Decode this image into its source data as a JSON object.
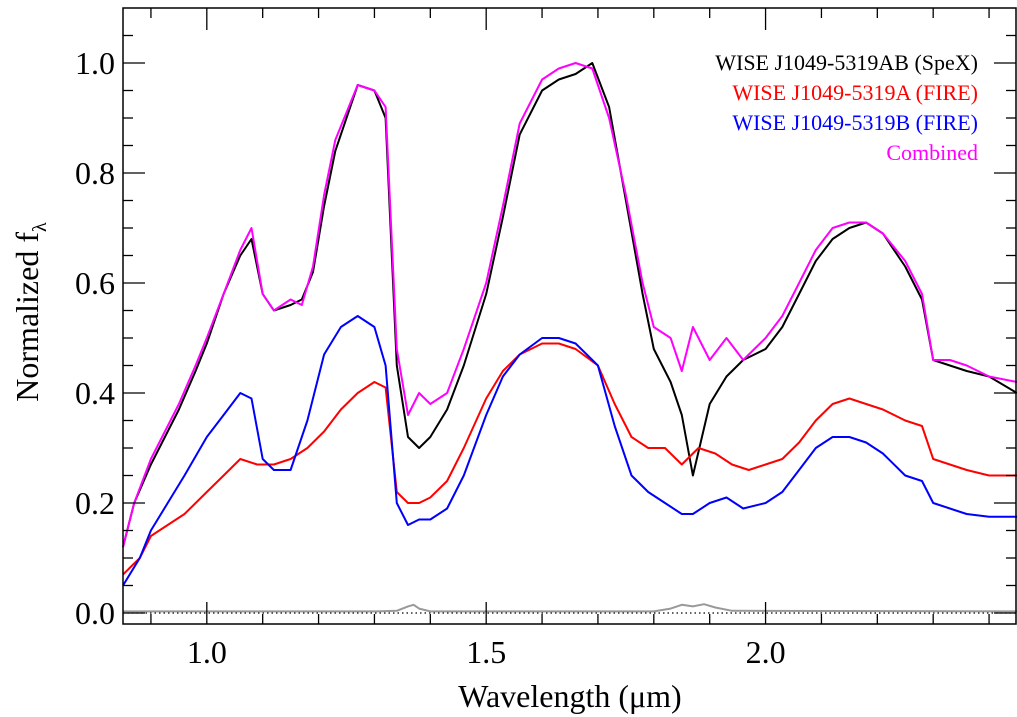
{
  "chart_data": {
    "type": "line",
    "title": "",
    "xlabel": "Wavelength (μm)",
    "ylabel": "Normalized f",
    "ylabel_sub": "λ",
    "xlim": [
      0.85,
      2.45
    ],
    "ylim": [
      -0.02,
      1.1
    ],
    "xticks": [
      1.0,
      1.5,
      2.0
    ],
    "xtick_labels": [
      "1.0",
      "1.5",
      "2.0"
    ],
    "yticks": [
      0.0,
      0.2,
      0.4,
      0.6,
      0.8,
      1.0
    ],
    "ytick_labels": [
      "0.0",
      "0.2",
      "0.4",
      "0.6",
      "0.8",
      "1.0"
    ],
    "grid": false,
    "legend_position": "top-right",
    "series": [
      {
        "name": "WISE J1049-5319AB (SpeX)",
        "color": "#000000",
        "x": [
          0.85,
          0.87,
          0.9,
          0.92,
          0.95,
          0.98,
          1.0,
          1.03,
          1.06,
          1.08,
          1.1,
          1.12,
          1.15,
          1.17,
          1.19,
          1.21,
          1.23,
          1.25,
          1.27,
          1.3,
          1.32,
          1.34,
          1.36,
          1.38,
          1.4,
          1.43,
          1.46,
          1.5,
          1.53,
          1.56,
          1.6,
          1.63,
          1.66,
          1.69,
          1.72,
          1.75,
          1.78,
          1.8,
          1.83,
          1.85,
          1.87,
          1.9,
          1.93,
          1.96,
          2.0,
          2.03,
          2.06,
          2.09,
          2.12,
          2.15,
          2.18,
          2.21,
          2.25,
          2.28,
          2.3,
          2.33,
          2.36,
          2.4,
          2.45
        ],
        "y": [
          0.12,
          0.2,
          0.27,
          0.31,
          0.37,
          0.44,
          0.49,
          0.58,
          0.65,
          0.68,
          0.58,
          0.55,
          0.56,
          0.57,
          0.62,
          0.74,
          0.84,
          0.9,
          0.96,
          0.95,
          0.9,
          0.45,
          0.32,
          0.3,
          0.32,
          0.37,
          0.45,
          0.58,
          0.72,
          0.87,
          0.95,
          0.97,
          0.98,
          1.0,
          0.92,
          0.75,
          0.58,
          0.48,
          0.42,
          0.36,
          0.25,
          0.38,
          0.43,
          0.46,
          0.48,
          0.52,
          0.58,
          0.64,
          0.68,
          0.7,
          0.71,
          0.69,
          0.63,
          0.57,
          0.46,
          0.45,
          0.44,
          0.43,
          0.4
        ]
      },
      {
        "name": "WISE J1049-5319A (FIRE)",
        "color": "#ff0000",
        "x": [
          0.85,
          0.88,
          0.9,
          0.93,
          0.96,
          1.0,
          1.03,
          1.06,
          1.09,
          1.12,
          1.15,
          1.18,
          1.21,
          1.24,
          1.27,
          1.3,
          1.32,
          1.34,
          1.36,
          1.38,
          1.4,
          1.43,
          1.46,
          1.5,
          1.53,
          1.56,
          1.6,
          1.63,
          1.66,
          1.7,
          1.73,
          1.76,
          1.79,
          1.82,
          1.85,
          1.88,
          1.91,
          1.94,
          1.97,
          2.0,
          2.03,
          2.06,
          2.09,
          2.12,
          2.15,
          2.18,
          2.21,
          2.25,
          2.28,
          2.3,
          2.33,
          2.36,
          2.4,
          2.45
        ],
        "y": [
          0.07,
          0.1,
          0.14,
          0.16,
          0.18,
          0.22,
          0.25,
          0.28,
          0.27,
          0.27,
          0.28,
          0.3,
          0.33,
          0.37,
          0.4,
          0.42,
          0.41,
          0.22,
          0.2,
          0.2,
          0.21,
          0.24,
          0.3,
          0.39,
          0.44,
          0.47,
          0.49,
          0.49,
          0.48,
          0.45,
          0.38,
          0.32,
          0.3,
          0.3,
          0.27,
          0.3,
          0.29,
          0.27,
          0.26,
          0.27,
          0.28,
          0.31,
          0.35,
          0.38,
          0.39,
          0.38,
          0.37,
          0.35,
          0.34,
          0.28,
          0.27,
          0.26,
          0.25,
          0.25
        ]
      },
      {
        "name": "WISE J1049-5319B (FIRE)",
        "color": "#0000ff",
        "x": [
          0.85,
          0.88,
          0.9,
          0.93,
          0.96,
          1.0,
          1.03,
          1.06,
          1.08,
          1.1,
          1.12,
          1.15,
          1.18,
          1.21,
          1.24,
          1.27,
          1.3,
          1.32,
          1.34,
          1.36,
          1.38,
          1.4,
          1.43,
          1.46,
          1.5,
          1.53,
          1.56,
          1.6,
          1.63,
          1.66,
          1.7,
          1.73,
          1.76,
          1.79,
          1.82,
          1.85,
          1.87,
          1.9,
          1.93,
          1.96,
          2.0,
          2.03,
          2.06,
          2.09,
          2.12,
          2.15,
          2.18,
          2.21,
          2.25,
          2.28,
          2.3,
          2.33,
          2.36,
          2.4,
          2.45
        ],
        "y": [
          0.05,
          0.1,
          0.15,
          0.2,
          0.25,
          0.32,
          0.36,
          0.4,
          0.39,
          0.28,
          0.26,
          0.26,
          0.35,
          0.47,
          0.52,
          0.54,
          0.52,
          0.45,
          0.2,
          0.16,
          0.17,
          0.17,
          0.19,
          0.25,
          0.36,
          0.43,
          0.47,
          0.5,
          0.5,
          0.49,
          0.45,
          0.34,
          0.25,
          0.22,
          0.2,
          0.18,
          0.18,
          0.2,
          0.21,
          0.19,
          0.2,
          0.22,
          0.26,
          0.3,
          0.32,
          0.32,
          0.31,
          0.29,
          0.25,
          0.24,
          0.2,
          0.19,
          0.18,
          0.175,
          0.175
        ]
      },
      {
        "name": "Combined",
        "color": "#ff00ff",
        "x": [
          0.85,
          0.87,
          0.9,
          0.92,
          0.95,
          0.98,
          1.0,
          1.03,
          1.06,
          1.08,
          1.1,
          1.12,
          1.15,
          1.17,
          1.19,
          1.21,
          1.23,
          1.25,
          1.27,
          1.3,
          1.32,
          1.34,
          1.36,
          1.38,
          1.4,
          1.43,
          1.46,
          1.5,
          1.53,
          1.56,
          1.6,
          1.63,
          1.66,
          1.69,
          1.72,
          1.75,
          1.78,
          1.8,
          1.83,
          1.85,
          1.87,
          1.9,
          1.93,
          1.96,
          2.0,
          2.03,
          2.06,
          2.09,
          2.12,
          2.15,
          2.18,
          2.21,
          2.25,
          2.28,
          2.3,
          2.33,
          2.36,
          2.4,
          2.45
        ],
        "y": [
          0.12,
          0.2,
          0.28,
          0.32,
          0.38,
          0.45,
          0.5,
          0.58,
          0.66,
          0.7,
          0.58,
          0.55,
          0.57,
          0.56,
          0.63,
          0.76,
          0.86,
          0.91,
          0.96,
          0.95,
          0.92,
          0.48,
          0.36,
          0.4,
          0.38,
          0.4,
          0.48,
          0.6,
          0.74,
          0.89,
          0.97,
          0.99,
          1.0,
          0.99,
          0.9,
          0.76,
          0.6,
          0.52,
          0.5,
          0.44,
          0.52,
          0.46,
          0.5,
          0.46,
          0.5,
          0.54,
          0.6,
          0.66,
          0.7,
          0.71,
          0.71,
          0.69,
          0.64,
          0.58,
          0.46,
          0.46,
          0.45,
          0.43,
          0.42
        ]
      },
      {
        "name": "",
        "color": "#999999",
        "x": [
          0.85,
          1.3,
          1.34,
          1.36,
          1.37,
          1.38,
          1.4,
          1.8,
          1.83,
          1.85,
          1.87,
          1.89,
          1.91,
          1.94,
          2.45
        ],
        "y": [
          0.003,
          0.003,
          0.004,
          0.012,
          0.015,
          0.008,
          0.003,
          0.003,
          0.008,
          0.015,
          0.012,
          0.016,
          0.01,
          0.004,
          0.003
        ]
      }
    ],
    "reference_lines": [
      {
        "y": 0.0,
        "style": "dotted",
        "color": "#000000"
      }
    ]
  }
}
